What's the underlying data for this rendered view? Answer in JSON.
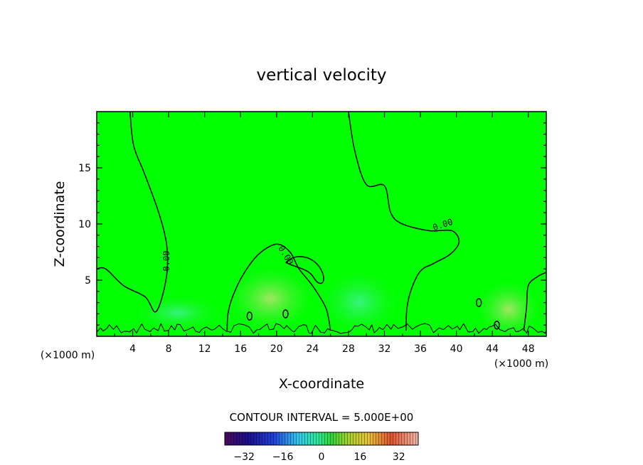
{
  "chart_data": {
    "type": "heatmap",
    "title": "vertical velocity",
    "xlabel": "X-coordinate",
    "ylabel": "Z-coordinate",
    "x_unit_left": "(×1000 m)",
    "x_unit_right": "(×1000 m)",
    "xlim": [
      0,
      50
    ],
    "ylim": [
      0,
      20
    ],
    "x_ticks": [
      "4",
      "8",
      "12",
      "16",
      "20",
      "24",
      "28",
      "32",
      "36",
      "40",
      "44",
      "48"
    ],
    "x_tick_values": [
      4,
      8,
      12,
      16,
      20,
      24,
      28,
      32,
      36,
      40,
      44,
      48
    ],
    "y_ticks": [
      "5",
      "10",
      "15"
    ],
    "y_tick_values": [
      5,
      10,
      15
    ],
    "contour_label": "0.00",
    "contour_interval_text": "CONTOUR INTERVAL = 5.000E+00",
    "colorbar": {
      "ticks": [
        "−32",
        "−16",
        "0",
        "16",
        "32"
      ],
      "tick_values": [
        -32,
        -16,
        0,
        16,
        32
      ],
      "range": [
        -40,
        40
      ]
    },
    "background_color": "#00ff00",
    "zero_contour": {
      "west_branch": [
        [
          3.7,
          20
        ],
        [
          4.1,
          17
        ],
        [
          5.3,
          14.5
        ],
        [
          6.9,
          11
        ],
        [
          7.8,
          8
        ],
        [
          7.7,
          5
        ],
        [
          6.6,
          2.2
        ],
        [
          5.4,
          3.5
        ],
        [
          3,
          4.5
        ],
        [
          1,
          6
        ],
        [
          0,
          6
        ]
      ],
      "central_arc": [
        [
          14.5,
          0.5
        ],
        [
          14.6,
          2
        ],
        [
          15.1,
          3.5
        ],
        [
          16.3,
          5.5
        ],
        [
          18,
          7.3
        ],
        [
          20,
          8.2
        ],
        [
          21.5,
          7.5
        ],
        [
          22.5,
          6
        ],
        [
          24,
          4.5
        ],
        [
          25.5,
          2.5
        ],
        [
          26,
          0.5
        ]
      ],
      "east_branch": [
        [
          28,
          20
        ],
        [
          28.7,
          16.5
        ],
        [
          30,
          13.5
        ],
        [
          32,
          13.4
        ],
        [
          32.7,
          11
        ],
        [
          34,
          10
        ],
        [
          37,
          9.4
        ],
        [
          39.5,
          9.4
        ],
        [
          40.3,
          8.4
        ],
        [
          39.3,
          7.3
        ],
        [
          37.5,
          6.5
        ],
        [
          36,
          5.8
        ],
        [
          35,
          4.2
        ],
        [
          34.5,
          2.5
        ],
        [
          34.4,
          0.5
        ]
      ],
      "right_branch": [
        [
          50,
          5.7
        ],
        [
          49,
          5.3
        ],
        [
          48,
          4.5
        ],
        [
          47.8,
          2.5
        ],
        [
          47.5,
          0.5
        ]
      ],
      "closed_ellipse": [
        22.8,
        6.2
      ],
      "near_ground_cells": [
        [
          17,
          1.8
        ],
        [
          21,
          2
        ],
        [
          42.5,
          3
        ],
        [
          44.5,
          1
        ]
      ]
    },
    "contour_label_positions": [
      [
        7.8,
        6.7
      ],
      [
        21,
        7.2
      ],
      [
        38.5,
        9.9
      ]
    ]
  }
}
